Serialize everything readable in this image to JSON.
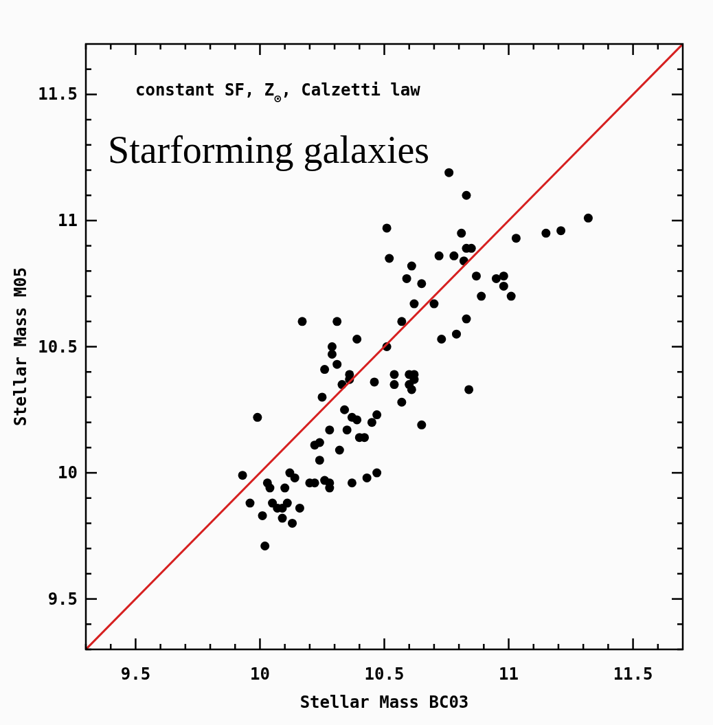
{
  "chart_data": {
    "type": "scatter",
    "xlabel": "Stellar Mass BC03",
    "ylabel": "Stellar Mass M05",
    "annotations": [
      "constant SF, Z$_{⊙}$, Calzetti law",
      "Starforming galaxies"
    ],
    "xlim": [
      9.3,
      11.7
    ],
    "ylim": [
      9.3,
      11.7
    ],
    "xticks": [
      {
        "value": 9.3,
        "label": null
      },
      {
        "value": 9.4,
        "label": null
      },
      {
        "value": 9.5,
        "label": "9.5"
      },
      {
        "value": 9.6,
        "label": null
      },
      {
        "value": 9.7,
        "label": null
      },
      {
        "value": 9.8,
        "label": null
      },
      {
        "value": 9.9,
        "label": null
      },
      10,
      {
        "value": 10.1,
        "label": null
      },
      {
        "value": 10.2,
        "label": null
      },
      {
        "value": 10.3,
        "label": null
      },
      {
        "value": 10.4,
        "label": null
      },
      {
        "value": 10.5,
        "label": "10.5"
      },
      {
        "value": 10.6,
        "label": null
      },
      {
        "value": 10.7,
        "label": null
      },
      {
        "value": 10.8,
        "label": null
      },
      {
        "value": 10.9,
        "label": null
      },
      11,
      {
        "value": 11.1,
        "label": null
      },
      {
        "value": 11.2,
        "label": null
      },
      {
        "value": 11.3,
        "label": null
      },
      {
        "value": 11.4,
        "label": null
      },
      {
        "value": 11.5,
        "label": "11.5"
      },
      {
        "value": 11.6,
        "label": null
      }
    ],
    "yticks": [
      {
        "value": 9.3,
        "label": null
      },
      {
        "value": 9.4,
        "label": null
      },
      {
        "value": 9.5,
        "label": "9.5"
      },
      {
        "value": 9.6,
        "label": null
      },
      {
        "value": 9.7,
        "label": null
      },
      {
        "value": 9.8,
        "label": null
      },
      {
        "value": 9.9,
        "label": null
      },
      10,
      {
        "value": 10.1,
        "label": null
      },
      {
        "value": 10.2,
        "label": null
      },
      {
        "value": 10.3,
        "label": null
      },
      {
        "value": 10.4,
        "label": null
      },
      {
        "value": 10.5,
        "label": "10.5"
      },
      {
        "value": 10.6,
        "label": null
      },
      {
        "value": 10.7,
        "label": null
      },
      {
        "value": 10.8,
        "label": null
      },
      {
        "value": 10.9,
        "label": null
      },
      11,
      {
        "value": 11.1,
        "label": null
      },
      {
        "value": 11.2,
        "label": null
      },
      {
        "value": 11.3,
        "label": null
      },
      {
        "value": 11.4,
        "label": null
      },
      {
        "value": 11.5,
        "label": "11.5"
      },
      {
        "value": 11.6,
        "label": null
      }
    ],
    "grid": false,
    "series": [
      {
        "color": "#000000",
        "marker": "circle",
        "x": [
          10.76,
          10.83,
          10.51,
          10.81,
          10.83,
          10.85,
          11.32,
          11.15,
          11.21,
          11.03,
          10.52,
          10.61,
          10.72,
          10.78,
          10.82,
          10.87,
          10.59,
          10.65,
          10.95,
          10.98,
          10.98,
          10.89,
          11.01,
          10.62,
          10.7,
          10.17,
          10.31,
          10.57,
          10.83,
          10.79,
          10.73,
          10.39,
          10.29,
          10.29,
          10.51,
          10.31,
          10.26,
          10.36,
          10.36,
          10.54,
          10.6,
          10.62,
          10.62,
          10.33,
          10.46,
          10.54,
          10.6,
          10.61,
          10.84,
          10.25,
          10.57,
          10.34,
          10.37,
          10.39,
          10.47,
          10.45,
          10.65,
          10.28,
          10.35,
          9.99,
          10.24,
          10.22,
          10.4,
          10.42,
          10.32,
          10.24,
          10.43,
          10.47,
          10.37,
          10.26,
          10.28,
          10.28,
          10.2,
          10.22,
          10.12,
          10.14,
          9.93,
          10.03,
          10.04,
          9.96,
          10.05,
          10.07,
          10.1,
          10.11,
          10.09,
          10.16,
          10.01,
          10.09,
          10.13,
          10.02
        ],
        "values": [
          11.19,
          11.1,
          10.97,
          10.95,
          10.89,
          10.89,
          11.01,
          10.95,
          10.96,
          10.93,
          10.85,
          10.82,
          10.86,
          10.86,
          10.84,
          10.78,
          10.77,
          10.75,
          10.77,
          10.78,
          10.74,
          10.7,
          10.7,
          10.67,
          10.67,
          10.6,
          10.6,
          10.6,
          10.61,
          10.55,
          10.53,
          10.53,
          10.5,
          10.47,
          10.5,
          10.43,
          10.41,
          10.39,
          10.37,
          10.39,
          10.39,
          10.39,
          10.37,
          10.35,
          10.36,
          10.35,
          10.35,
          10.33,
          10.33,
          10.3,
          10.28,
          10.25,
          10.22,
          10.21,
          10.23,
          10.2,
          10.19,
          10.17,
          10.17,
          10.22,
          10.12,
          10.11,
          10.14,
          10.14,
          10.09,
          10.05,
          9.98,
          10,
          9.96,
          9.97,
          9.96,
          9.94,
          9.96,
          9.96,
          10,
          9.98,
          9.99,
          9.96,
          9.94,
          9.88,
          9.88,
          9.86,
          9.94,
          9.88,
          9.86,
          9.86,
          9.83,
          9.82,
          9.8,
          9.71
        ]
      },
      {
        "type": "line",
        "color": "#d62020",
        "marker": "none",
        "line_style": "solid",
        "x": [
          9.3,
          11.7
        ],
        "values": [
          9.3,
          11.7
        ]
      }
    ]
  }
}
